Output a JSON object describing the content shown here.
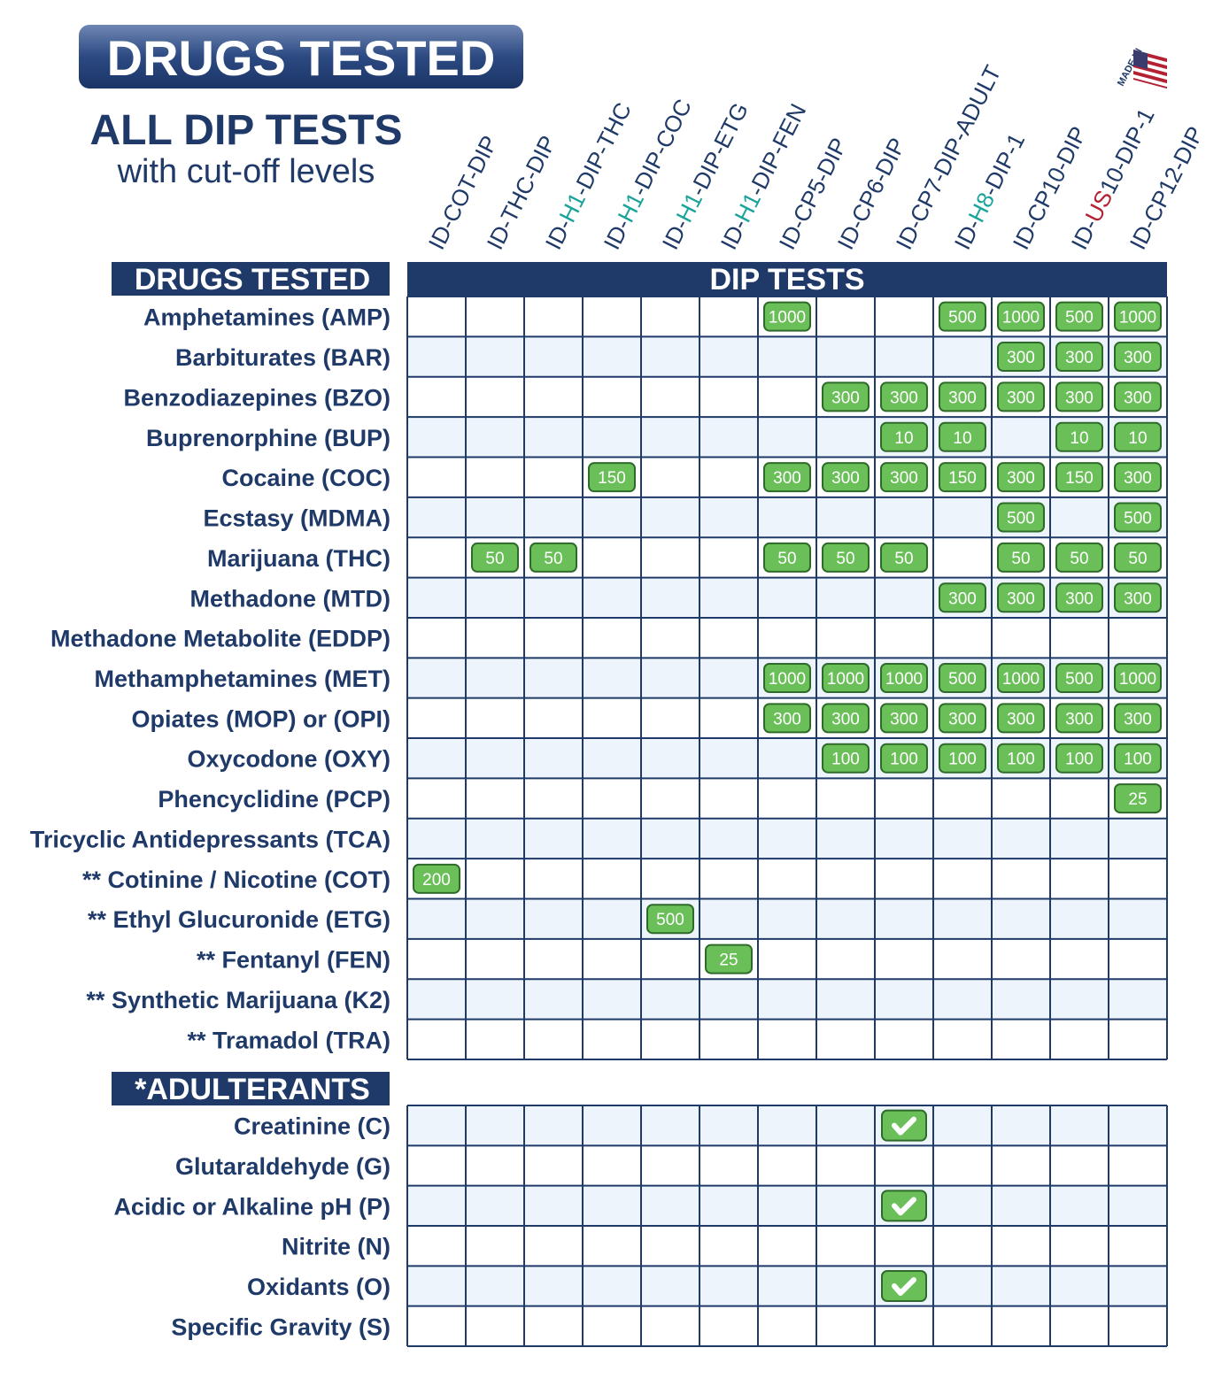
{
  "banner": "DRUGS TESTED",
  "title": "ALL DIP TESTS",
  "subtitle": "with cut-off levels",
  "made_in": "MADE IN",
  "columns": [
    [
      {
        "text": "ID-COT-DIP"
      }
    ],
    [
      {
        "text": "ID-THC-DIP"
      }
    ],
    [
      {
        "text": "ID-"
      },
      {
        "text": "H1",
        "color": "#1aa39a"
      },
      {
        "text": "-DIP-THC"
      }
    ],
    [
      {
        "text": "ID-"
      },
      {
        "text": "H1",
        "color": "#1aa39a"
      },
      {
        "text": "-DIP-COC"
      }
    ],
    [
      {
        "text": "ID-"
      },
      {
        "text": "H1",
        "color": "#1aa39a"
      },
      {
        "text": "-DIP-ETG"
      }
    ],
    [
      {
        "text": "ID-"
      },
      {
        "text": "H1",
        "color": "#1aa39a"
      },
      {
        "text": "-DIP-FEN"
      }
    ],
    [
      {
        "text": "ID-CP5-DIP"
      }
    ],
    [
      {
        "text": "ID-CP6-DIP"
      }
    ],
    [
      {
        "text": "ID-CP7-DIP-ADULT"
      }
    ],
    [
      {
        "text": "ID-"
      },
      {
        "text": "H8",
        "color": "#1aa39a"
      },
      {
        "text": "-DIP-1"
      }
    ],
    [
      {
        "text": "ID-CP10-DIP"
      }
    ],
    [
      {
        "text": "ID-"
      },
      {
        "text": "US",
        "color": "#b22234"
      },
      {
        "text": "10-DIP-1"
      }
    ],
    [
      {
        "text": "ID-CP12-DIP"
      }
    ]
  ],
  "drugs": {
    "label": "DRUGS TESTED",
    "header": "DIP TESTS",
    "rows": [
      {
        "name": "Amphetamines (AMP)",
        "values": [
          null,
          null,
          null,
          null,
          null,
          null,
          1000,
          null,
          null,
          500,
          1000,
          500,
          1000
        ]
      },
      {
        "name": "Barbiturates (BAR)",
        "values": [
          null,
          null,
          null,
          null,
          null,
          null,
          null,
          null,
          null,
          null,
          300,
          300,
          300
        ]
      },
      {
        "name": "Benzodiazepines (BZO)",
        "values": [
          null,
          null,
          null,
          null,
          null,
          null,
          null,
          300,
          300,
          300,
          300,
          300,
          300
        ]
      },
      {
        "name": "Buprenorphine (BUP)",
        "values": [
          null,
          null,
          null,
          null,
          null,
          null,
          null,
          null,
          10,
          10,
          null,
          10,
          10
        ]
      },
      {
        "name": "Cocaine (COC)",
        "values": [
          null,
          null,
          null,
          150,
          null,
          null,
          300,
          300,
          300,
          150,
          300,
          150,
          300
        ]
      },
      {
        "name": "Ecstasy (MDMA)",
        "values": [
          null,
          null,
          null,
          null,
          null,
          null,
          null,
          null,
          null,
          null,
          500,
          null,
          500
        ]
      },
      {
        "name": "Marijuana (THC)",
        "values": [
          null,
          50,
          50,
          null,
          null,
          null,
          50,
          50,
          50,
          null,
          50,
          50,
          50
        ]
      },
      {
        "name": "Methadone (MTD)",
        "values": [
          null,
          null,
          null,
          null,
          null,
          null,
          null,
          null,
          null,
          300,
          300,
          300,
          300
        ]
      },
      {
        "name": "Methadone Metabolite (EDDP)",
        "values": [
          null,
          null,
          null,
          null,
          null,
          null,
          null,
          null,
          null,
          null,
          null,
          null,
          null
        ]
      },
      {
        "name": "Methamphetamines (MET)",
        "values": [
          null,
          null,
          null,
          null,
          null,
          null,
          1000,
          1000,
          1000,
          500,
          1000,
          500,
          1000
        ]
      },
      {
        "name": "Opiates (MOP) or (OPI)",
        "values": [
          null,
          null,
          null,
          null,
          null,
          null,
          300,
          300,
          300,
          300,
          300,
          300,
          300
        ]
      },
      {
        "name": "Oxycodone (OXY)",
        "values": [
          null,
          null,
          null,
          null,
          null,
          null,
          null,
          100,
          100,
          100,
          100,
          100,
          100
        ]
      },
      {
        "name": "Phencyclidine (PCP)",
        "values": [
          null,
          null,
          null,
          null,
          null,
          null,
          null,
          null,
          null,
          null,
          null,
          null,
          25
        ]
      },
      {
        "name": "Tricyclic Antidepressants (TCA)",
        "values": [
          null,
          null,
          null,
          null,
          null,
          null,
          null,
          null,
          null,
          null,
          null,
          null,
          null
        ]
      },
      {
        "name": "** Cotinine / Nicotine (COT)",
        "values": [
          200,
          null,
          null,
          null,
          null,
          null,
          null,
          null,
          null,
          null,
          null,
          null,
          null
        ]
      },
      {
        "name": "** Ethyl Glucuronide (ETG)",
        "values": [
          null,
          null,
          null,
          null,
          500,
          null,
          null,
          null,
          null,
          null,
          null,
          null,
          null
        ]
      },
      {
        "name": "** Fentanyl (FEN)",
        "values": [
          null,
          null,
          null,
          null,
          null,
          25,
          null,
          null,
          null,
          null,
          null,
          null,
          null
        ]
      },
      {
        "name": "** Synthetic Marijuana (K2)",
        "values": [
          null,
          null,
          null,
          null,
          null,
          null,
          null,
          null,
          null,
          null,
          null,
          null,
          null
        ]
      },
      {
        "name": "** Tramadol (TRA)",
        "values": [
          null,
          null,
          null,
          null,
          null,
          null,
          null,
          null,
          null,
          null,
          null,
          null,
          null
        ]
      }
    ]
  },
  "adulterants": {
    "label": "*ADULTERANTS",
    "rows": [
      {
        "name": "Creatinine (C)",
        "checks": [
          null,
          null,
          null,
          null,
          null,
          null,
          null,
          null,
          true,
          null,
          null,
          null,
          null
        ]
      },
      {
        "name": "Glutaraldehyde (G)",
        "checks": [
          null,
          null,
          null,
          null,
          null,
          null,
          null,
          null,
          null,
          null,
          null,
          null,
          null
        ]
      },
      {
        "name": "Acidic or Alkaline pH (P)",
        "checks": [
          null,
          null,
          null,
          null,
          null,
          null,
          null,
          null,
          true,
          null,
          null,
          null,
          null
        ]
      },
      {
        "name": "Nitrite (N)",
        "checks": [
          null,
          null,
          null,
          null,
          null,
          null,
          null,
          null,
          null,
          null,
          null,
          null,
          null
        ]
      },
      {
        "name": "Oxidants (O)",
        "checks": [
          null,
          null,
          null,
          null,
          null,
          null,
          null,
          null,
          true,
          null,
          null,
          null,
          null
        ]
      },
      {
        "name": "Specific Gravity (S)",
        "checks": [
          null,
          null,
          null,
          null,
          null,
          null,
          null,
          null,
          null,
          null,
          null,
          null,
          null
        ]
      }
    ]
  }
}
